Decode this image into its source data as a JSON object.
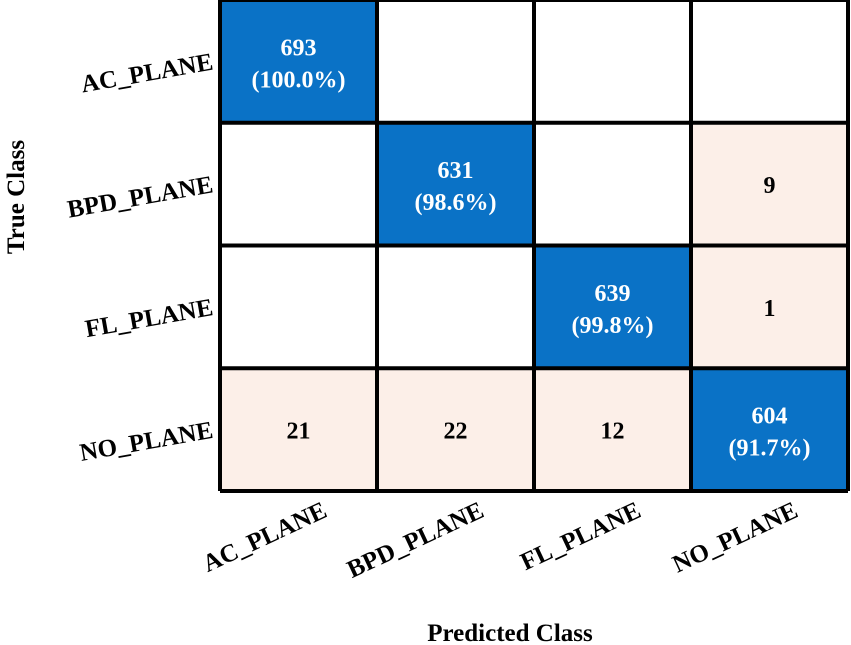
{
  "chart_data": {
    "type": "heatmap",
    "subtype": "confusion-matrix",
    "title": "",
    "xlabel": "Predicted Class",
    "ylabel": "True Class",
    "row_labels": [
      "AC_PLANE",
      "BPD_PLANE",
      "FL_PLANE",
      "NO_PLANE"
    ],
    "col_labels": [
      "AC_PLANE",
      "BPD_PLANE",
      "FL_PLANE",
      "NO_PLANE"
    ],
    "matrix": [
      [
        693,
        0,
        0,
        0
      ],
      [
        0,
        631,
        0,
        9
      ],
      [
        0,
        0,
        639,
        1
      ],
      [
        21,
        22,
        12,
        604
      ]
    ],
    "diagonal_percent": [
      "100.0%",
      "98.6%",
      "99.8%",
      "91.7%"
    ],
    "colors": {
      "diagonal": "#0a72c6",
      "error": "#fcefe8",
      "empty": "#ffffff",
      "grid": "#000000",
      "diagonal_text": "#ffffff",
      "error_text": "#000000"
    },
    "grid": true
  }
}
